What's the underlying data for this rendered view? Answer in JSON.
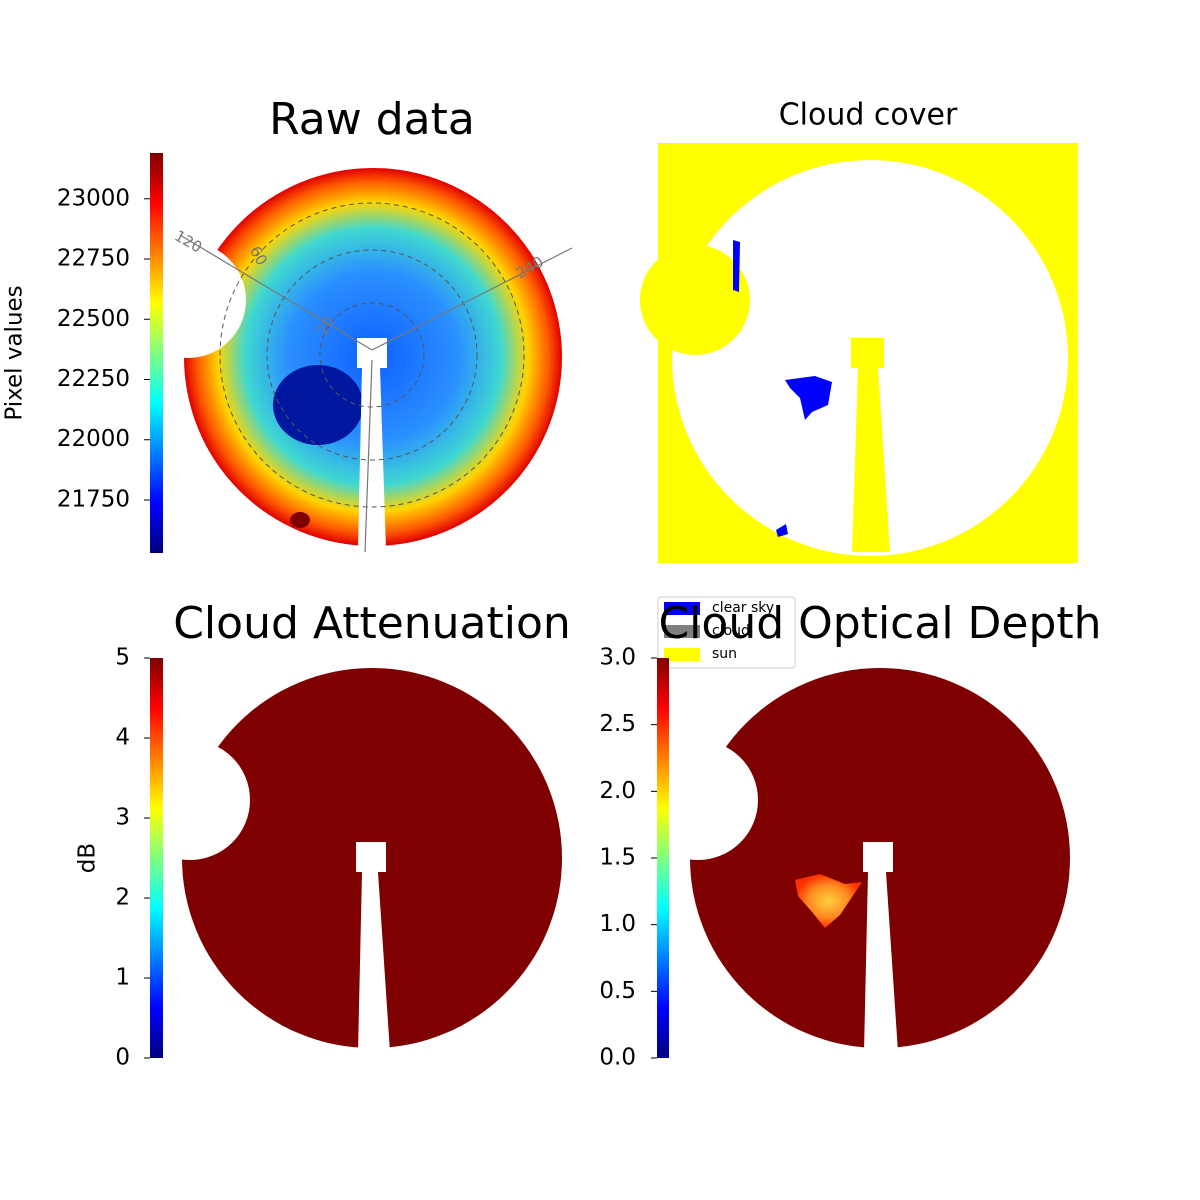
{
  "chart_data": [
    {
      "type": "heatmap",
      "title": "Raw data",
      "ylabel": "Pixel values",
      "colormap": "jet",
      "ylim": [
        21530,
        23190
      ],
      "yticks": [
        21750,
        22000,
        22250,
        22500,
        22750,
        23000
      ],
      "polar_labels": [
        "120",
        "60",
        "240",
        "20"
      ]
    },
    {
      "type": "heatmap",
      "title": "Cloud cover",
      "legend": "lower left",
      "series": [
        {
          "name": "clear sky",
          "color": "#0000ff"
        },
        {
          "name": "cloud",
          "color": "#808080"
        },
        {
          "name": "sun",
          "color": "#ffff00"
        }
      ]
    },
    {
      "type": "heatmap",
      "title": "Cloud Attenuation",
      "ylabel": "dB",
      "colormap": "jet",
      "ylim": [
        0,
        5
      ],
      "yticks": [
        0,
        1,
        2,
        3,
        4,
        5
      ]
    },
    {
      "type": "heatmap",
      "title": "Cloud Optical Depth",
      "colormap": "jet",
      "ylim": [
        0,
        3
      ],
      "yticks": [
        {
          "value": 0,
          "label": "0.0"
        },
        0.5,
        {
          "value": 1,
          "label": "1.0"
        },
        1.5,
        {
          "value": 2,
          "label": "2.0"
        },
        2.5,
        {
          "value": 3,
          "label": "3.0"
        }
      ]
    }
  ]
}
